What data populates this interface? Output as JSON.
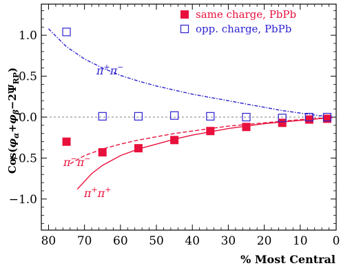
{
  "chart_data": {
    "type": "scatter",
    "xlabel": "% Most Central",
    "ylabel": "Cos(φα+φβ−2ΨRP)",
    "xlim": [
      82,
      0
    ],
    "ylim": [
      -1.38,
      1.38
    ],
    "x_ticks": [
      80,
      70,
      60,
      50,
      40,
      30,
      20,
      10,
      0
    ],
    "y_ticks": [
      1.0,
      0.5,
      0.0,
      -0.5,
      -1.0
    ],
    "x_tick_labels": [
      "80",
      "70",
      "60",
      "50",
      "40",
      "30",
      "20",
      "10",
      "0"
    ],
    "y_tick_labels": [
      "1.0",
      "0.5",
      "0.0",
      "−0.5",
      "−1.0"
    ],
    "grid": false,
    "legend_position": "top-right",
    "reference_line": {
      "y": 0,
      "style": "dotted",
      "color": "#999999"
    },
    "series": [
      {
        "name": "same charge, PbPb",
        "marker": "filled-square",
        "color": "#e8103c",
        "points": [
          {
            "x": 75,
            "y": -0.3
          },
          {
            "x": 65,
            "y": -0.43
          },
          {
            "x": 55,
            "y": -0.38
          },
          {
            "x": 45,
            "y": -0.28
          },
          {
            "x": 35,
            "y": -0.17
          },
          {
            "x": 25,
            "y": -0.12
          },
          {
            "x": 15,
            "y": -0.07
          },
          {
            "x": 7.5,
            "y": -0.03
          },
          {
            "x": 2.5,
            "y": -0.02
          }
        ]
      },
      {
        "name": "opp. charge, PbPb",
        "marker": "open-square",
        "color": "#2a1fd0",
        "points": [
          {
            "x": 75,
            "y": 1.04
          },
          {
            "x": 65,
            "y": 0.01
          },
          {
            "x": 55,
            "y": 0.01
          },
          {
            "x": 45,
            "y": 0.02
          },
          {
            "x": 35,
            "y": 0.01
          },
          {
            "x": 25,
            "y": 0.0
          },
          {
            "x": 15,
            "y": -0.01
          },
          {
            "x": 7.5,
            "y": 0.0
          },
          {
            "x": 2.5,
            "y": 0.0
          }
        ]
      }
    ],
    "curves": [
      {
        "label": "π⁺π⁻",
        "style": "dash-dot",
        "color": "#2a1fd0",
        "points": [
          [
            80,
            1.08
          ],
          [
            75,
            0.86
          ],
          [
            70,
            0.71
          ],
          [
            65,
            0.6
          ],
          [
            60,
            0.51
          ],
          [
            55,
            0.44
          ],
          [
            50,
            0.38
          ],
          [
            45,
            0.33
          ],
          [
            40,
            0.28
          ],
          [
            35,
            0.24
          ],
          [
            30,
            0.2
          ],
          [
            25,
            0.16
          ],
          [
            20,
            0.12
          ],
          [
            15,
            0.08
          ],
          [
            10,
            0.05
          ],
          [
            5,
            0.02
          ],
          [
            1,
            0.005
          ]
        ]
      },
      {
        "label": "π⁻π⁻",
        "style": "dashed",
        "color": "#e8103c",
        "points": [
          [
            74,
            -0.57
          ],
          [
            70,
            -0.47
          ],
          [
            65,
            -0.39
          ],
          [
            60,
            -0.33
          ],
          [
            55,
            -0.28
          ],
          [
            50,
            -0.24
          ],
          [
            45,
            -0.2
          ],
          [
            40,
            -0.17
          ],
          [
            35,
            -0.14
          ],
          [
            30,
            -0.11
          ],
          [
            25,
            -0.09
          ],
          [
            20,
            -0.07
          ],
          [
            15,
            -0.05
          ],
          [
            10,
            -0.03
          ],
          [
            5,
            -0.015
          ],
          [
            1,
            -0.005
          ]
        ]
      },
      {
        "label": "π⁺π⁺",
        "style": "solid",
        "color": "#e8103c",
        "points": [
          [
            72,
            -0.88
          ],
          [
            68,
            -0.69
          ],
          [
            65,
            -0.59
          ],
          [
            60,
            -0.47
          ],
          [
            55,
            -0.39
          ],
          [
            50,
            -0.33
          ],
          [
            45,
            -0.27
          ],
          [
            40,
            -0.22
          ],
          [
            35,
            -0.18
          ],
          [
            30,
            -0.14
          ],
          [
            25,
            -0.11
          ],
          [
            20,
            -0.08
          ],
          [
            15,
            -0.06
          ],
          [
            10,
            -0.04
          ],
          [
            5,
            -0.02
          ],
          [
            1,
            -0.005
          ]
        ]
      }
    ]
  },
  "annotations": {
    "pi_plus_pi_minus": {
      "base": "π",
      "sup1": "+",
      "mid": "π",
      "sup2": "−"
    },
    "pi_minus_pi_minus": {
      "base": "π",
      "sup1": "−",
      "mid": "π",
      "sup2": "−"
    },
    "pi_plus_pi_plus": {
      "base": "π",
      "sup1": "+",
      "mid": "π",
      "sup2": "+"
    }
  },
  "legend": {
    "same_label": "same charge, PbPb",
    "opp_label": "opp. charge, PbPb"
  },
  "ylabel_parts": {
    "cos": "Cos(",
    "phi1": "φ",
    "sub1": "α",
    "plus": "+",
    "phi2": "φ",
    "sub2": "β",
    "minus": "−2Ψ",
    "sub3": "RP",
    "close": ")"
  }
}
